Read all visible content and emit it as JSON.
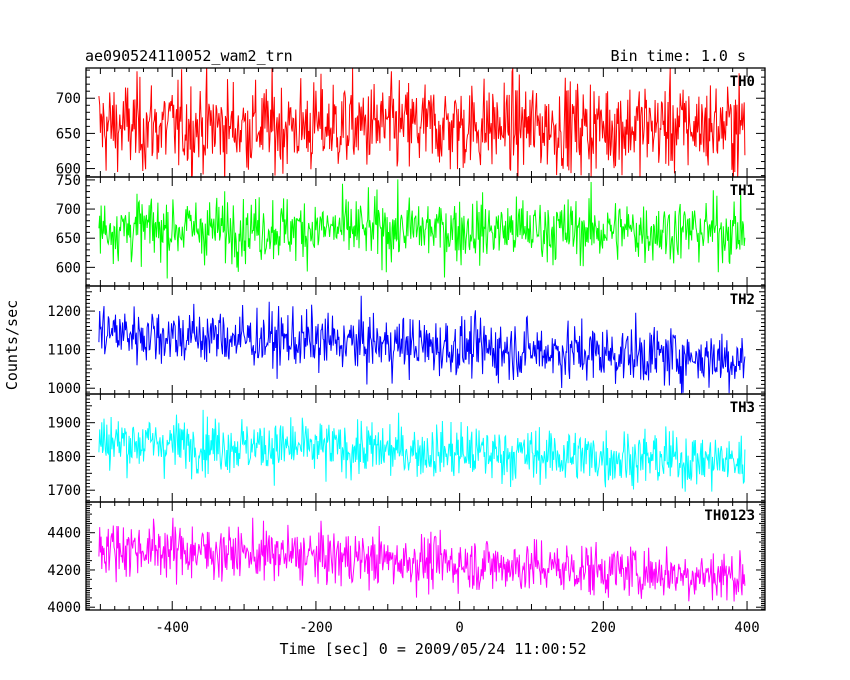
{
  "header": {
    "title": "ae090524110052_wam2_trn",
    "bin_time": "Bin time: 1.0 s"
  },
  "axes": {
    "xlabel": "Time [sec] 0 = 2009/05/24 11:00:52",
    "ylabel": "Counts/sec"
  },
  "chart_data": {
    "type": "line",
    "title": "ae090524110052_wam2_trn",
    "subtitle": "Bin time: 1.0 s",
    "xlabel": "Time [sec] 0 = 2009/05/24 11:00:52",
    "ylabel": "Counts/sec",
    "xlim": [
      -520,
      425
    ],
    "x_range": [
      -502,
      397
    ],
    "bin_time": 1.0,
    "x_ticks": [
      -400,
      -200,
      0,
      200,
      400
    ],
    "grid": false,
    "legend": "none",
    "panels": [
      {
        "name": "TH0",
        "color": "#ff0000",
        "ylim": [
          588,
          743
        ],
        "y_ticks": [
          600,
          650,
          700
        ],
        "mean": 660,
        "noise_amp": 38,
        "trend": 0
      },
      {
        "name": "TH1",
        "color": "#00ff00",
        "ylim": [
          568,
          755
        ],
        "y_ticks": [
          600,
          650,
          700,
          750
        ],
        "mean": 665,
        "noise_amp": 32,
        "trend": -5
      },
      {
        "name": "TH2",
        "color": "#0000ff",
        "ylim": [
          985,
          1265
        ],
        "y_ticks": [
          1000,
          1100,
          1200
        ],
        "mean": 1110,
        "noise_amp": 45,
        "trend": -70
      },
      {
        "name": "TH3",
        "color": "#00ffff",
        "ylim": [
          1665,
          1985
        ],
        "y_ticks": [
          1700,
          1800,
          1900
        ],
        "mean": 1815,
        "noise_amp": 48,
        "trend": -60
      },
      {
        "name": "TH0123",
        "color": "#ff00ff",
        "ylim": [
          3985,
          4565
        ],
        "y_ticks": [
          4000,
          4200,
          4400
        ],
        "mean": 4245,
        "noise_amp": 85,
        "trend": -160
      }
    ]
  }
}
